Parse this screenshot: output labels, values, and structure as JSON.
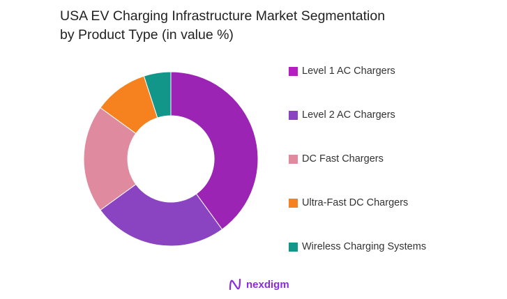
{
  "title_line1": "USA EV Charging Infrastructure Market Segmentation",
  "title_line2": "by Product Type (in value %)",
  "chart_data": {
    "type": "pie",
    "donut": true,
    "title": "USA EV Charging Infrastructure Market Segmentation by Product Type (in value %)",
    "legend_position": "right",
    "categories": [
      "Level 1 AC Chargers",
      "Level 2 AC Chargers",
      "DC Fast Chargers",
      "Ultra-Fast DC Chargers",
      "Wireless Charging Systems"
    ],
    "values": [
      40,
      25,
      20,
      10,
      5
    ],
    "colors": [
      "#9c24b4",
      "#8a44c2",
      "#e08aa0",
      "#f5821f",
      "#12968a"
    ],
    "legend_colors": [
      "#b51fc0",
      "#8a44c2",
      "#e08aa0",
      "#f5821f",
      "#12968a"
    ]
  },
  "logo": {
    "text": "nexdigm"
  }
}
